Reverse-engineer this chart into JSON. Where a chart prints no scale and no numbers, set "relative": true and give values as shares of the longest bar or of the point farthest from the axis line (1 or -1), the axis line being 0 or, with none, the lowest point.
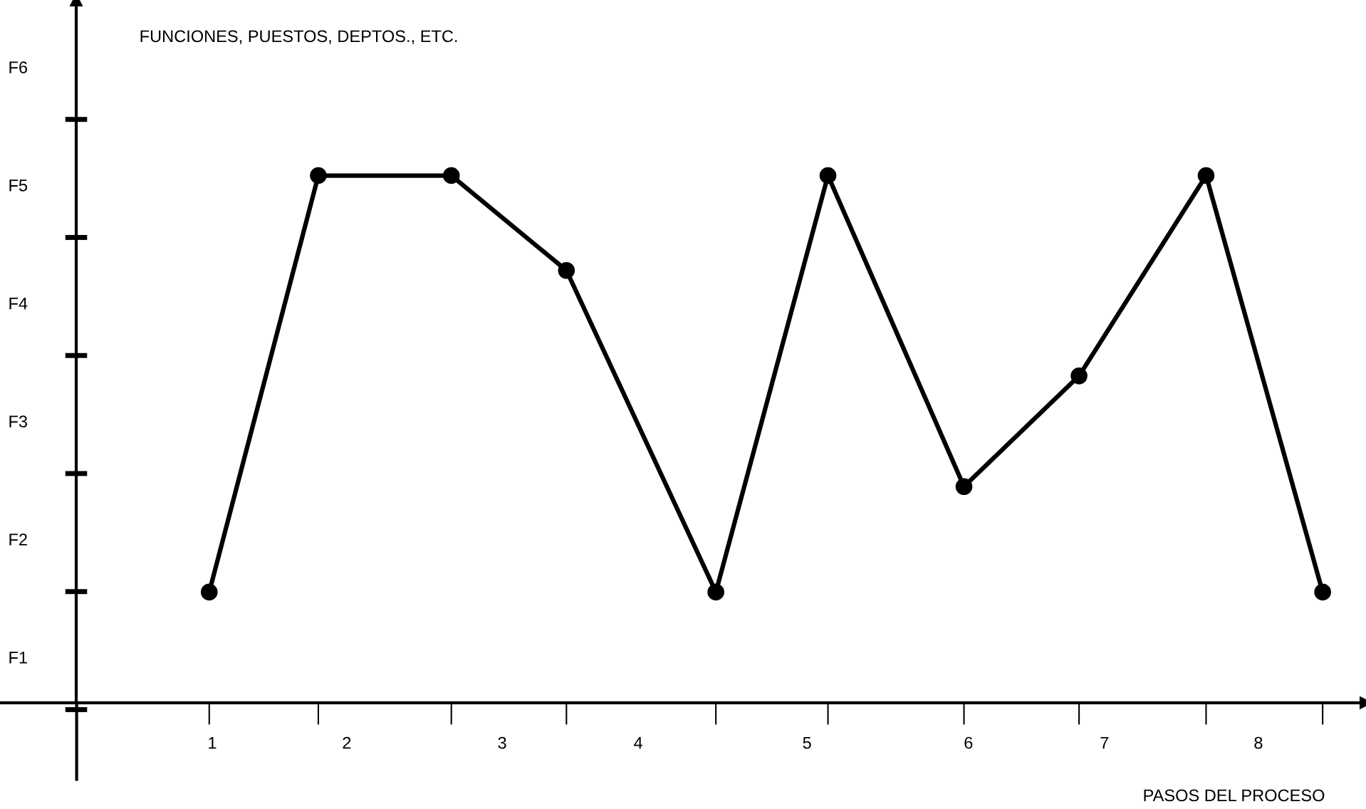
{
  "chart_data": {
    "type": "line",
    "relative": true,
    "title": "FUNCIONES, PUESTOS, DEPTOS., ETC.",
    "xlabel": "PASOS DEL PROCESO",
    "x": [
      0.89,
      1.62,
      2.51,
      3.28,
      4.28,
      5.03,
      5.94,
      6.71,
      7.56,
      8.34
    ],
    "series": [
      {
        "color": "#000000",
        "values": [
          0.21,
          1,
          1,
          0.82,
          0.21,
          1,
          0.41,
          0.62,
          1,
          0.21
        ]
      }
    ],
    "annotations": [
      "F1",
      "F2",
      "F3",
      "F4",
      "F5",
      "F6"
    ],
    "xlim": [
      -0.51,
      8.63
    ],
    "xticks": [
      {
        "value": 0.91,
        "label": "1"
      },
      {
        "value": 1.81,
        "label": "2"
      },
      {
        "value": 2.85,
        "label": "3"
      },
      {
        "value": 3.76,
        "label": "4"
      },
      {
        "value": 4.89,
        "label": "5"
      },
      {
        "value": 5.97,
        "label": "6"
      },
      {
        "value": 6.88,
        "label": "7"
      },
      {
        "value": 7.91,
        "label": "8"
      }
    ],
    "marker": "circle",
    "line_style": "solid"
  }
}
